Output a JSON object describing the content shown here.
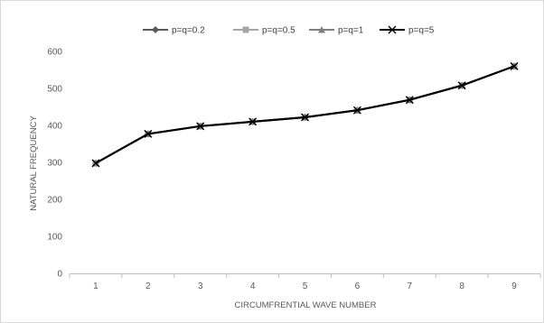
{
  "chart_data": {
    "type": "line",
    "title": "",
    "xlabel": "CIRCUMFRENTIAL WAVE NUMBER",
    "ylabel": "NATURAL FREQUENCY",
    "categories": [
      "1",
      "2",
      "3",
      "4",
      "5",
      "6",
      "7",
      "8",
      "9"
    ],
    "ylim": [
      0,
      600
    ],
    "yticks": [
      "0",
      "100",
      "200",
      "300",
      "400",
      "500",
      "600"
    ],
    "grid": false,
    "legend_position": "top",
    "series": [
      {
        "name": "p=q=0.2",
        "marker": "diamond",
        "color": "#595959",
        "values": [
          298,
          377,
          398,
          410,
          422,
          441,
          469,
          508,
          560
        ]
      },
      {
        "name": "p=q=0.5",
        "marker": "square",
        "color": "#a6a6a6",
        "values": [
          298,
          377,
          398,
          410,
          422,
          441,
          469,
          508,
          560
        ]
      },
      {
        "name": "p=q=1",
        "marker": "triangle",
        "color": "#7f7f7f",
        "values": [
          298,
          377,
          398,
          410,
          422,
          441,
          469,
          508,
          560
        ]
      },
      {
        "name": "p=q=5",
        "marker": "x",
        "color": "#000000",
        "values": [
          298,
          377,
          398,
          410,
          422,
          441,
          469,
          508,
          560
        ]
      }
    ]
  }
}
